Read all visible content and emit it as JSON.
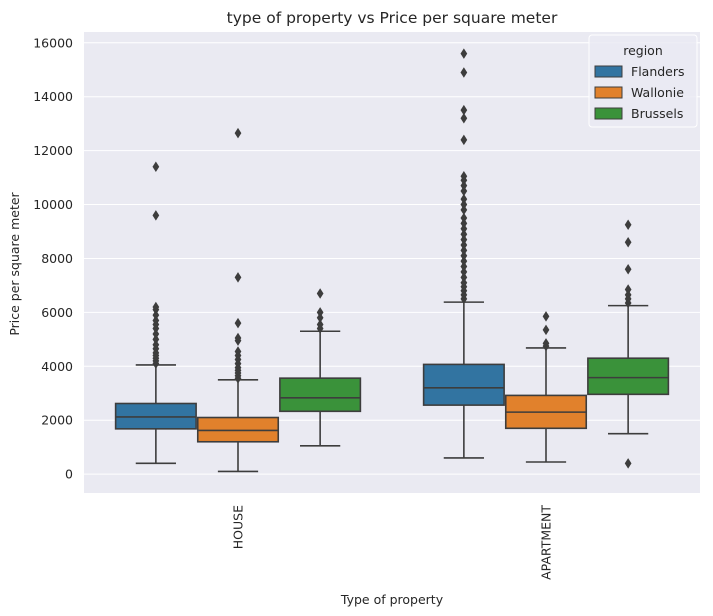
{
  "chart_data": {
    "type": "box",
    "title": "type of property vs Price per square meter",
    "xlabel": "Type of property",
    "ylabel": "Price per square meter",
    "ylim": [
      -700,
      16400
    ],
    "yticks": [
      0,
      2000,
      4000,
      6000,
      8000,
      10000,
      12000,
      14000,
      16000
    ],
    "grid": true,
    "categories": [
      "HOUSE",
      "APARTMENT"
    ],
    "legend": {
      "title": "region",
      "placement": "top-right"
    },
    "series": [
      {
        "name": "Flanders",
        "color": "#3274a1",
        "boxes": [
          {
            "whisker_low": 400,
            "q1": 1680,
            "median": 2120,
            "q3": 2620,
            "whisker_high": 4050,
            "outliers": [
              4100,
              4200,
              4300,
              4400,
              4500,
              4650,
              4800,
              5000,
              5200,
              5400,
              5550,
              5700,
              5900,
              6100,
              6200,
              9600,
              11400
            ]
          },
          {
            "whisker_low": 600,
            "q1": 2560,
            "median": 3200,
            "q3": 4070,
            "whisker_high": 6380,
            "outliers": [
              6500,
              6650,
              6800,
              6950,
              7100,
              7300,
              7500,
              7700,
              7900,
              8100,
              8300,
              8500,
              8700,
              8900,
              9100,
              9300,
              9500,
              9800,
              10000,
              10200,
              10500,
              10700,
              10900,
              11050,
              12400,
              13200,
              13500,
              14900,
              15600
            ]
          }
        ]
      },
      {
        "name": "Wallonie",
        "color": "#e1812c",
        "boxes": [
          {
            "whisker_low": 100,
            "q1": 1200,
            "median": 1620,
            "q3": 2100,
            "whisker_high": 3500,
            "outliers": [
              3550,
              3650,
              3750,
              3850,
              3950,
              4100,
              4250,
              4400,
              4550,
              4950,
              5050,
              5600,
              7300,
              12650
            ]
          },
          {
            "whisker_low": 450,
            "q1": 1700,
            "median": 2300,
            "q3": 2920,
            "whisker_high": 4680,
            "outliers": [
              4750,
              4850,
              5350,
              5850
            ]
          }
        ]
      },
      {
        "name": "Brussels",
        "color": "#3a923a",
        "boxes": [
          {
            "whisker_low": 1050,
            "q1": 2330,
            "median": 2830,
            "q3": 3560,
            "whisker_high": 5300,
            "outliers": [
              5400,
              5550,
              5800,
              6000,
              6700
            ]
          },
          {
            "whisker_low": 1500,
            "q1": 2960,
            "median": 3580,
            "q3": 4300,
            "whisker_high": 6250,
            "outliers": [
              400,
              6350,
              6500,
              6650,
              6850,
              7600,
              8600,
              9250
            ]
          }
        ]
      }
    ]
  }
}
